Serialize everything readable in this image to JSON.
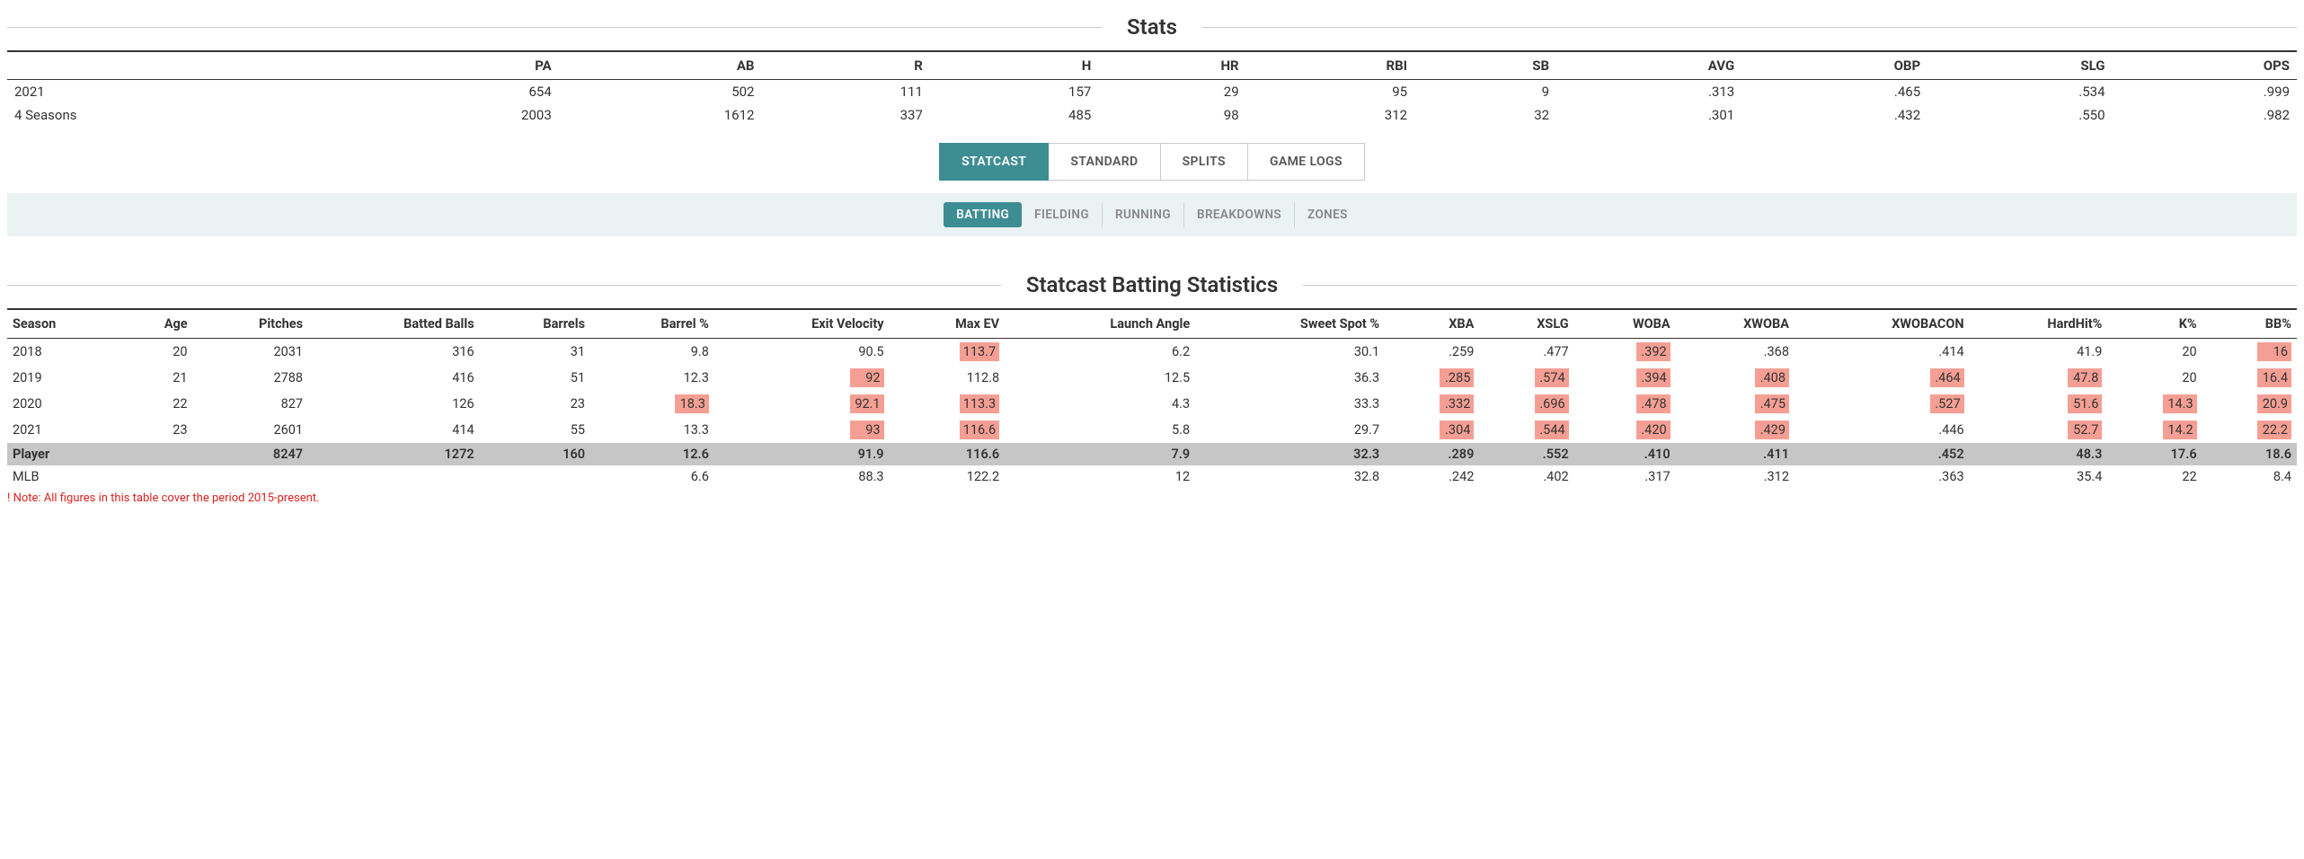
{
  "stats_section_title": "Stats",
  "summary": {
    "columns": [
      "",
      "PA",
      "AB",
      "R",
      "H",
      "HR",
      "RBI",
      "SB",
      "AVG",
      "OBP",
      "SLG",
      "OPS"
    ],
    "rows": [
      {
        "label": "2021",
        "PA": "654",
        "AB": "502",
        "R": "111",
        "H": "157",
        "HR": "29",
        "RBI": "95",
        "SB": "9",
        "AVG": ".313",
        "OBP": ".465",
        "SLG": ".534",
        "OPS": ".999"
      },
      {
        "label": "4 Seasons",
        "PA": "2003",
        "AB": "1612",
        "R": "337",
        "H": "485",
        "HR": "98",
        "RBI": "312",
        "SB": "32",
        "AVG": ".301",
        "OBP": ".432",
        "SLG": ".550",
        "OPS": ".982"
      }
    ]
  },
  "primary_tabs": [
    {
      "label": "STATCAST",
      "active": true
    },
    {
      "label": "STANDARD",
      "active": false
    },
    {
      "label": "SPLITS",
      "active": false
    },
    {
      "label": "GAME LOGS",
      "active": false
    }
  ],
  "secondary_tabs": [
    {
      "label": "BATTING",
      "active": true
    },
    {
      "label": "FIELDING",
      "active": false
    },
    {
      "label": "RUNNING",
      "active": false
    },
    {
      "label": "BREAKDOWNS",
      "active": false
    },
    {
      "label": "ZONES",
      "active": false
    }
  ],
  "statcast_section_title": "Statcast Batting Statistics",
  "statcast": {
    "columns": [
      "Season",
      "Age",
      "Pitches",
      "Batted Balls",
      "Barrels",
      "Barrel %",
      "Exit Velocity",
      "Max EV",
      "Launch Angle",
      "Sweet Spot %",
      "XBA",
      "XSLG",
      "WOBA",
      "XWOBA",
      "XWOBACON",
      "HardHit%",
      "K%",
      "BB%"
    ],
    "rows": [
      {
        "Season": "2018",
        "Age": "20",
        "Pitches": "2031",
        "Batted Balls": "316",
        "Barrels": "31",
        "Barrel %": {
          "v": "9.8"
        },
        "Exit Velocity": {
          "v": "90.5"
        },
        "Max EV": {
          "v": "113.7",
          "hl": true
        },
        "Launch Angle": {
          "v": "6.2"
        },
        "Sweet Spot %": {
          "v": "30.1"
        },
        "XBA": {
          "v": ".259"
        },
        "XSLG": {
          "v": ".477"
        },
        "WOBA": {
          "v": ".392",
          "hl": true
        },
        "XWOBA": {
          "v": ".368"
        },
        "XWOBACON": {
          "v": ".414"
        },
        "HardHit%": {
          "v": "41.9"
        },
        "K%": {
          "v": "20"
        },
        "BB%": {
          "v": "16",
          "hl": true
        }
      },
      {
        "Season": "2019",
        "Age": "21",
        "Pitches": "2788",
        "Batted Balls": "416",
        "Barrels": "51",
        "Barrel %": {
          "v": "12.3"
        },
        "Exit Velocity": {
          "v": "92",
          "hl": true
        },
        "Max EV": {
          "v": "112.8"
        },
        "Launch Angle": {
          "v": "12.5"
        },
        "Sweet Spot %": {
          "v": "36.3"
        },
        "XBA": {
          "v": ".285",
          "hl": true
        },
        "XSLG": {
          "v": ".574",
          "hl": true
        },
        "WOBA": {
          "v": ".394",
          "hl": true
        },
        "XWOBA": {
          "v": ".408",
          "hl": true
        },
        "XWOBACON": {
          "v": ".464",
          "hl": true
        },
        "HardHit%": {
          "v": "47.8",
          "hl": true
        },
        "K%": {
          "v": "20"
        },
        "BB%": {
          "v": "16.4",
          "hl": true
        }
      },
      {
        "Season": "2020",
        "Age": "22",
        "Pitches": "827",
        "Batted Balls": "126",
        "Barrels": "23",
        "Barrel %": {
          "v": "18.3",
          "hl": true
        },
        "Exit Velocity": {
          "v": "92.1",
          "hl": true
        },
        "Max EV": {
          "v": "113.3",
          "hl": true
        },
        "Launch Angle": {
          "v": "4.3"
        },
        "Sweet Spot %": {
          "v": "33.3"
        },
        "XBA": {
          "v": ".332",
          "hl": true
        },
        "XSLG": {
          "v": ".696",
          "hl": true
        },
        "WOBA": {
          "v": ".478",
          "hl": true
        },
        "XWOBA": {
          "v": ".475",
          "hl": true
        },
        "XWOBACON": {
          "v": ".527",
          "hl": true
        },
        "HardHit%": {
          "v": "51.6",
          "hl": true
        },
        "K%": {
          "v": "14.3",
          "hl": true
        },
        "BB%": {
          "v": "20.9",
          "hl": true
        }
      },
      {
        "Season": "2021",
        "Age": "23",
        "Pitches": "2601",
        "Batted Balls": "414",
        "Barrels": "55",
        "Barrel %": {
          "v": "13.3"
        },
        "Exit Velocity": {
          "v": "93",
          "hl": true
        },
        "Max EV": {
          "v": "116.6",
          "hl": true
        },
        "Launch Angle": {
          "v": "5.8"
        },
        "Sweet Spot %": {
          "v": "29.7"
        },
        "XBA": {
          "v": ".304",
          "hl": true
        },
        "XSLG": {
          "v": ".544",
          "hl": true
        },
        "WOBA": {
          "v": ".420",
          "hl": true
        },
        "XWOBA": {
          "v": ".429",
          "hl": true
        },
        "XWOBACON": {
          "v": ".446"
        },
        "HardHit%": {
          "v": "52.7",
          "hl": true
        },
        "K%": {
          "v": "14.2",
          "hl": true
        },
        "BB%": {
          "v": "22.2",
          "hl": true
        }
      }
    ],
    "summary_rows": [
      {
        "Season": "Player",
        "Age": "",
        "Pitches": "8247",
        "Batted Balls": "1272",
        "Barrels": "160",
        "Barrel %": "12.6",
        "Exit Velocity": "91.9",
        "Max EV": "116.6",
        "Launch Angle": "7.9",
        "Sweet Spot %": "32.3",
        "XBA": ".289",
        "XSLG": ".552",
        "WOBA": ".410",
        "XWOBA": ".411",
        "XWOBACON": ".452",
        "HardHit%": "48.3",
        "K%": "17.6",
        "BB%": "18.6",
        "class": "sumrow"
      },
      {
        "Season": "MLB",
        "Age": "",
        "Pitches": "",
        "Batted Balls": "",
        "Barrels": "",
        "Barrel %": "6.6",
        "Exit Velocity": "88.3",
        "Max EV": "122.2",
        "Launch Angle": "12",
        "Sweet Spot %": "32.8",
        "XBA": ".242",
        "XSLG": ".402",
        "WOBA": ".317",
        "XWOBA": ".312",
        "XWOBACON": ".363",
        "HardHit%": "35.4",
        "K%": "22",
        "BB%": "8.4",
        "class": "mlbrow"
      }
    ]
  },
  "note": "! Note: All figures in this table cover the period 2015-present.",
  "colors": {
    "tab_active_bg": "#3e8d93",
    "secondary_bar_bg": "#eaf2f2",
    "highlight_bg": "#f59f94",
    "sumrow_bg": "#c6c6c6",
    "note_color": "#d22"
  }
}
